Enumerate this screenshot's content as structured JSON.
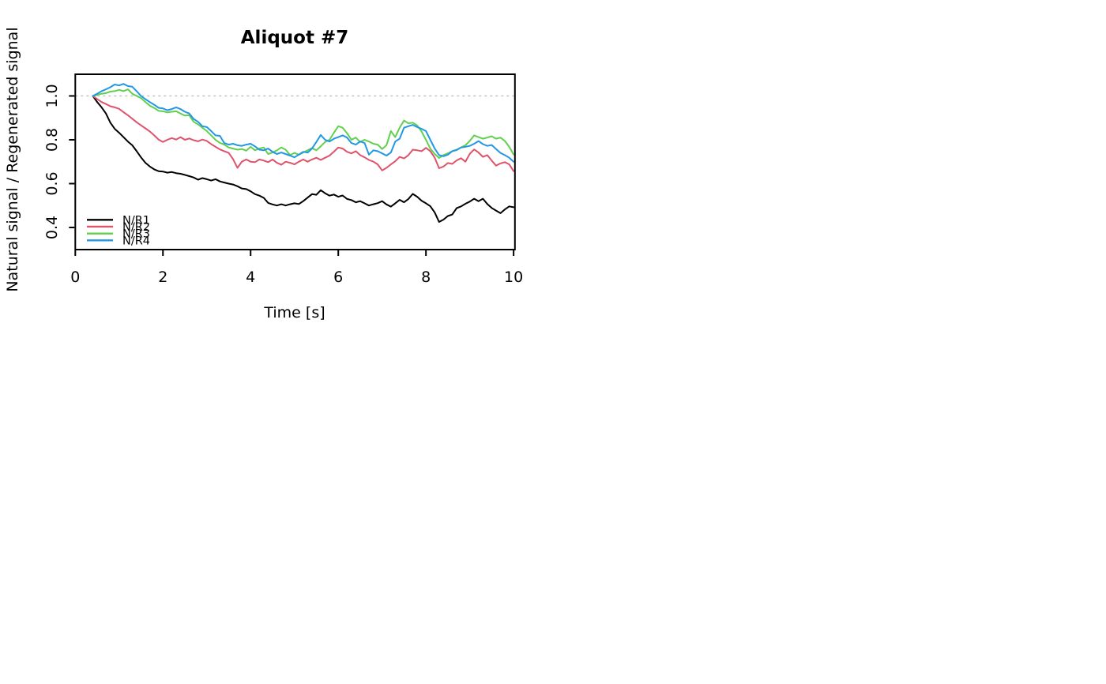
{
  "chart_data": {
    "type": "line",
    "title": "Aliquot #7",
    "xlabel": "Time [s]",
    "ylabel": "Natural signal / Regenerated signal",
    "x_ticks": [
      0,
      2,
      4,
      6,
      8,
      10
    ],
    "x_tick_labels": [
      "0",
      "2",
      "4",
      "6",
      "8",
      "10"
    ],
    "y_ticks": [
      0.4,
      0.6,
      0.8,
      1.0
    ],
    "y_tick_labels": [
      "0.4",
      "0.6",
      "0.8",
      "1.0"
    ],
    "xlim": [
      0,
      10.03
    ],
    "ylim": [
      0.299,
      1.099
    ],
    "grid": false,
    "legend_position": "bottom-left",
    "reference_line": {
      "y": 1.0,
      "style": "dotted",
      "color": "#C8C8C8"
    },
    "x": [
      0.4,
      0.5,
      0.6,
      0.7,
      0.8,
      0.9,
      1.0,
      1.1,
      1.2,
      1.3,
      1.4,
      1.5,
      1.6,
      1.7,
      1.8,
      1.9,
      2.0,
      2.1,
      2.2,
      2.3,
      2.4,
      2.5,
      2.6,
      2.7,
      2.8,
      2.9,
      3.0,
      3.1,
      3.2,
      3.3,
      3.4,
      3.5,
      3.6,
      3.7,
      3.8,
      3.9,
      4.0,
      4.1,
      4.2,
      4.3,
      4.4,
      4.5,
      4.6,
      4.7,
      4.8,
      4.9,
      5.0,
      5.1,
      5.2,
      5.3,
      5.4,
      5.5,
      5.6,
      5.7,
      5.8,
      5.9,
      6.0,
      6.1,
      6.2,
      6.3,
      6.4,
      6.5,
      6.6,
      6.7,
      6.8,
      6.9,
      7.0,
      7.1,
      7.2,
      7.3,
      7.4,
      7.5,
      7.6,
      7.7,
      7.8,
      7.9,
      8.0,
      8.1,
      8.2,
      8.3,
      8.4,
      8.5,
      8.6,
      8.7,
      8.8,
      8.9,
      9.0,
      9.1,
      9.2,
      9.3,
      9.4,
      9.5,
      9.6,
      9.7,
      9.8,
      9.9,
      10.0
    ],
    "series": [
      {
        "name": "N/R1",
        "color": "#000000",
        "values": [
          1.0,
          0.972,
          0.948,
          0.92,
          0.878,
          0.85,
          0.832,
          0.812,
          0.792,
          0.775,
          0.748,
          0.72,
          0.695,
          0.678,
          0.665,
          0.657,
          0.655,
          0.65,
          0.653,
          0.648,
          0.645,
          0.64,
          0.634,
          0.628,
          0.618,
          0.625,
          0.62,
          0.614,
          0.62,
          0.61,
          0.605,
          0.6,
          0.596,
          0.588,
          0.578,
          0.575,
          0.565,
          0.552,
          0.545,
          0.535,
          0.512,
          0.505,
          0.5,
          0.506,
          0.5,
          0.506,
          0.51,
          0.507,
          0.52,
          0.536,
          0.552,
          0.549,
          0.57,
          0.556,
          0.545,
          0.55,
          0.54,
          0.546,
          0.53,
          0.525,
          0.515,
          0.52,
          0.51,
          0.5,
          0.506,
          0.511,
          0.52,
          0.505,
          0.495,
          0.51,
          0.526,
          0.515,
          0.53,
          0.553,
          0.54,
          0.522,
          0.51,
          0.497,
          0.468,
          0.425,
          0.436,
          0.452,
          0.459,
          0.488,
          0.496,
          0.508,
          0.518,
          0.531,
          0.52,
          0.531,
          0.507,
          0.489,
          0.477,
          0.465,
          0.482,
          0.496,
          0.492
        ]
      },
      {
        "name": "N/R2",
        "color": "#DF536B",
        "values": [
          1.0,
          0.986,
          0.972,
          0.963,
          0.953,
          0.948,
          0.941,
          0.926,
          0.912,
          0.896,
          0.88,
          0.866,
          0.852,
          0.838,
          0.82,
          0.801,
          0.79,
          0.8,
          0.808,
          0.801,
          0.812,
          0.8,
          0.806,
          0.798,
          0.793,
          0.801,
          0.795,
          0.78,
          0.768,
          0.756,
          0.748,
          0.74,
          0.712,
          0.672,
          0.7,
          0.71,
          0.7,
          0.698,
          0.71,
          0.705,
          0.698,
          0.71,
          0.695,
          0.686,
          0.7,
          0.695,
          0.688,
          0.7,
          0.71,
          0.7,
          0.71,
          0.718,
          0.708,
          0.718,
          0.728,
          0.746,
          0.765,
          0.76,
          0.745,
          0.738,
          0.748,
          0.73,
          0.72,
          0.708,
          0.7,
          0.688,
          0.66,
          0.672,
          0.688,
          0.702,
          0.722,
          0.715,
          0.73,
          0.755,
          0.752,
          0.748,
          0.763,
          0.748,
          0.718,
          0.67,
          0.678,
          0.694,
          0.69,
          0.706,
          0.716,
          0.7,
          0.736,
          0.756,
          0.742,
          0.722,
          0.73,
          0.705,
          0.682,
          0.692,
          0.698,
          0.688,
          0.657
        ]
      },
      {
        "name": "N/R3",
        "color": "#61D04F",
        "values": [
          1.0,
          1.005,
          1.01,
          1.013,
          1.02,
          1.022,
          1.028,
          1.022,
          1.03,
          1.01,
          1.0,
          0.99,
          0.972,
          0.956,
          0.945,
          0.932,
          0.93,
          0.925,
          0.928,
          0.93,
          0.92,
          0.91,
          0.912,
          0.882,
          0.87,
          0.855,
          0.84,
          0.82,
          0.8,
          0.786,
          0.778,
          0.765,
          0.76,
          0.755,
          0.758,
          0.75,
          0.768,
          0.752,
          0.76,
          0.765,
          0.735,
          0.742,
          0.752,
          0.765,
          0.755,
          0.73,
          0.74,
          0.732,
          0.742,
          0.752,
          0.762,
          0.752,
          0.77,
          0.79,
          0.8,
          0.832,
          0.862,
          0.855,
          0.83,
          0.8,
          0.81,
          0.79,
          0.8,
          0.792,
          0.782,
          0.778,
          0.758,
          0.775,
          0.84,
          0.812,
          0.855,
          0.888,
          0.875,
          0.878,
          0.865,
          0.838,
          0.8,
          0.76,
          0.735,
          0.717,
          0.73,
          0.738,
          0.748,
          0.755,
          0.765,
          0.775,
          0.795,
          0.82,
          0.812,
          0.805,
          0.81,
          0.816,
          0.805,
          0.81,
          0.795,
          0.768,
          0.733
        ]
      },
      {
        "name": "N/R4",
        "color": "#2297E6",
        "values": [
          1.0,
          1.01,
          1.022,
          1.03,
          1.04,
          1.052,
          1.048,
          1.055,
          1.045,
          1.042,
          1.022,
          1.0,
          0.985,
          0.972,
          0.96,
          0.946,
          0.943,
          0.935,
          0.94,
          0.948,
          0.94,
          0.928,
          0.92,
          0.895,
          0.882,
          0.862,
          0.858,
          0.84,
          0.82,
          0.818,
          0.785,
          0.778,
          0.782,
          0.775,
          0.772,
          0.778,
          0.782,
          0.77,
          0.755,
          0.752,
          0.76,
          0.745,
          0.735,
          0.742,
          0.735,
          0.728,
          0.72,
          0.732,
          0.745,
          0.742,
          0.76,
          0.79,
          0.822,
          0.8,
          0.792,
          0.805,
          0.812,
          0.82,
          0.81,
          0.785,
          0.778,
          0.792,
          0.785,
          0.732,
          0.752,
          0.748,
          0.738,
          0.728,
          0.742,
          0.792,
          0.805,
          0.855,
          0.862,
          0.868,
          0.858,
          0.85,
          0.84,
          0.8,
          0.76,
          0.73,
          0.725,
          0.732,
          0.748,
          0.753,
          0.765,
          0.768,
          0.772,
          0.782,
          0.794,
          0.78,
          0.772,
          0.776,
          0.758,
          0.74,
          0.73,
          0.718,
          0.7
        ]
      }
    ]
  }
}
